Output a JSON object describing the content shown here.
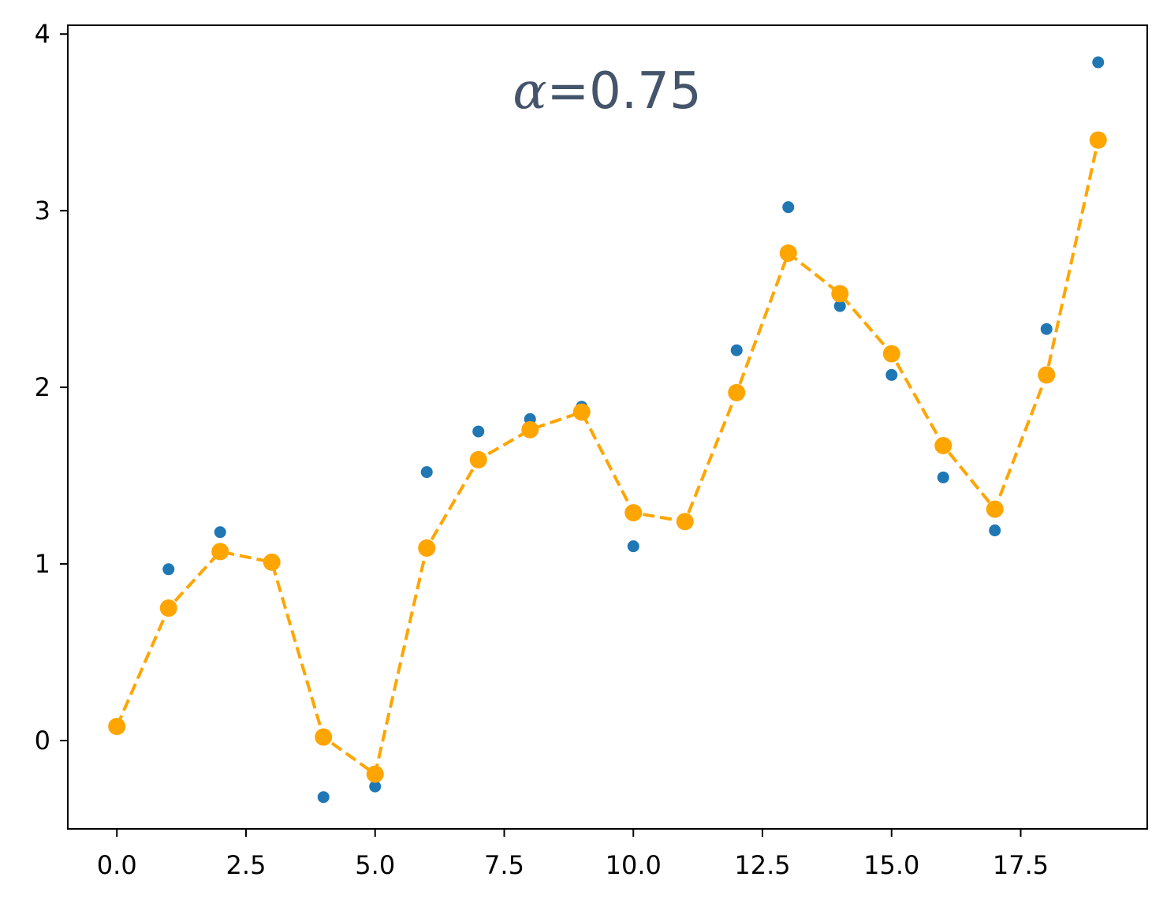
{
  "chart_data": {
    "type": "line",
    "xlim": [
      -0.95,
      19.95
    ],
    "ylim": [
      -0.5,
      4.05
    ],
    "xticks": [
      {
        "value": 0,
        "label": "0.0"
      },
      {
        "value": 2.5,
        "label": "2.5"
      },
      {
        "value": 5,
        "label": "5.0"
      },
      {
        "value": 7.5,
        "label": "7.5"
      },
      {
        "value": 10,
        "label": "10.0"
      },
      {
        "value": 12.5,
        "label": "12.5"
      },
      {
        "value": 15,
        "label": "15.0"
      },
      {
        "value": 17.5,
        "label": "17.5"
      }
    ],
    "yticks": [
      {
        "value": 0,
        "label": "0"
      },
      {
        "value": 1,
        "label": "1"
      },
      {
        "value": 2,
        "label": "2"
      },
      {
        "value": 3,
        "label": "3"
      },
      {
        "value": 4,
        "label": "4"
      }
    ],
    "annotation": {
      "symbol": "α",
      "text": "=0.75",
      "color": "#44546a"
    },
    "grid": false,
    "series": [
      {
        "kind": "scatter",
        "color": "#1f77b4",
        "x": [
          0,
          1,
          2,
          3,
          4,
          5,
          6,
          7,
          8,
          9,
          10,
          11,
          12,
          13,
          14,
          15,
          16,
          17,
          18,
          19
        ],
        "y": [
          0.08,
          0.97,
          1.18,
          1.01,
          -0.32,
          -0.26,
          1.52,
          1.75,
          1.82,
          1.89,
          1.1,
          1.24,
          2.21,
          3.02,
          2.46,
          2.07,
          1.49,
          1.19,
          2.33,
          3.84
        ]
      },
      {
        "kind": "line",
        "style": "dashed",
        "markers": true,
        "color": "#ffa500",
        "x": [
          0,
          1,
          2,
          3,
          4,
          5,
          6,
          7,
          8,
          9,
          10,
          11,
          12,
          13,
          14,
          15,
          16,
          17,
          18,
          19
        ],
        "y": [
          0.08,
          0.75,
          1.07,
          1.01,
          0.02,
          -0.19,
          1.09,
          1.59,
          1.76,
          1.86,
          1.29,
          1.24,
          1.97,
          2.76,
          2.53,
          2.19,
          1.67,
          1.31,
          2.07,
          3.4
        ]
      }
    ]
  }
}
